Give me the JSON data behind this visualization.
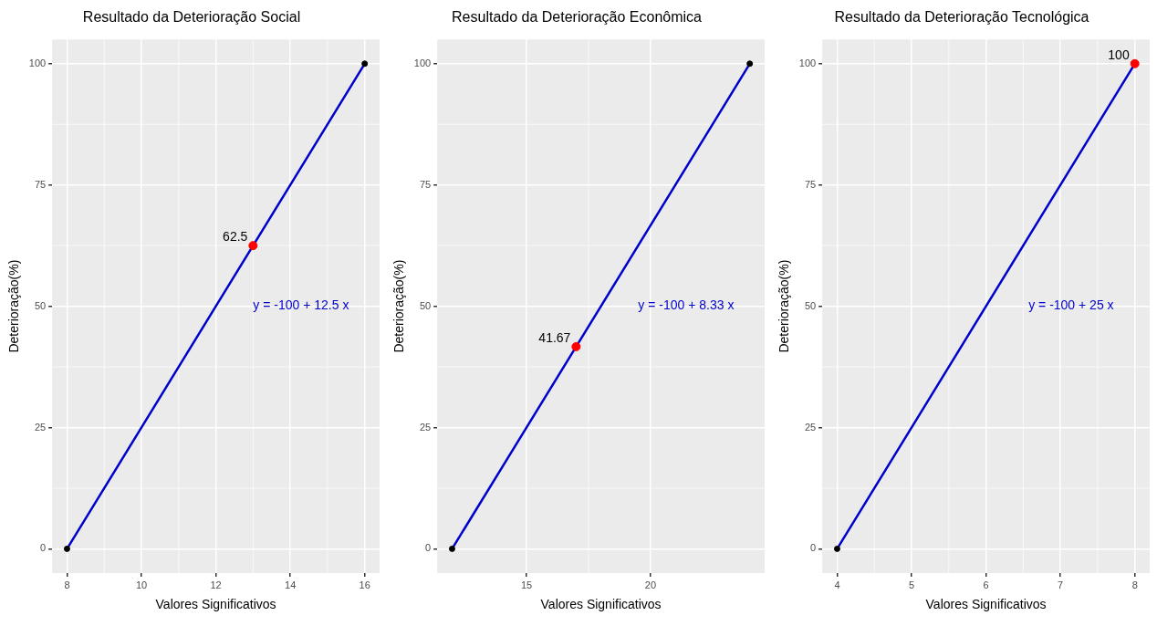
{
  "chart_data": [
    {
      "type": "line",
      "title": "Resultado da Deterioração Social",
      "xlabel": "Valores Significativos",
      "ylabel": "Deterioração(%)",
      "xlim": [
        7.6,
        16.4
      ],
      "xticks": [
        8,
        10,
        12,
        14,
        16
      ],
      "ylim": [
        -5,
        105
      ],
      "yticks": [
        0,
        25,
        50,
        75,
        100
      ],
      "grid": true,
      "series": [
        {
          "x": [
            8,
            16
          ],
          "values": [
            0,
            100
          ],
          "color": "#0000cd",
          "marker": "none"
        },
        {
          "type": "scatter",
          "x": [
            8,
            16
          ],
          "values": [
            0,
            100
          ],
          "color": "#000000",
          "marker": "circle"
        },
        {
          "type": "scatter",
          "x": [
            13
          ],
          "values": [
            62.5
          ],
          "color": "#ff0000",
          "marker": "circle",
          "value_labels": [
            "62.5"
          ]
        }
      ],
      "annotations": [
        "y = -100 + 12.5 x"
      ]
    },
    {
      "type": "line",
      "title": "Resultado da Deterioração Econômica",
      "xlabel": "Valores Significativos",
      "ylabel": "Deterioração(%)",
      "xlim": [
        11.4,
        24.6
      ],
      "xticks": [
        15,
        20
      ],
      "ylim": [
        -5,
        105
      ],
      "yticks": [
        0,
        25,
        50,
        75,
        100
      ],
      "grid": true,
      "series": [
        {
          "x": [
            12,
            24
          ],
          "values": [
            0,
            100
          ],
          "color": "#0000cd",
          "marker": "none"
        },
        {
          "type": "scatter",
          "x": [
            12,
            24
          ],
          "values": [
            0,
            100
          ],
          "color": "#000000",
          "marker": "circle"
        },
        {
          "type": "scatter",
          "x": [
            17
          ],
          "values": [
            41.67
          ],
          "color": "#ff0000",
          "marker": "circle",
          "value_labels": [
            "41.67"
          ]
        }
      ],
      "annotations": [
        "y = -100 + 8.33 x"
      ]
    },
    {
      "type": "line",
      "title": "Resultado da Deterioração Tecnológica",
      "xlabel": "Valores Significativos",
      "ylabel": "Deterioração(%)",
      "xlim": [
        3.8,
        8.2
      ],
      "xticks": [
        4,
        5,
        6,
        7,
        8
      ],
      "ylim": [
        -5,
        105
      ],
      "yticks": [
        0,
        25,
        50,
        75,
        100
      ],
      "grid": true,
      "series": [
        {
          "x": [
            4,
            8
          ],
          "values": [
            0,
            100
          ],
          "color": "#0000cd",
          "marker": "none"
        },
        {
          "type": "scatter",
          "x": [
            4
          ],
          "values": [
            0
          ],
          "color": "#000000",
          "marker": "circle"
        },
        {
          "type": "scatter",
          "x": [
            8
          ],
          "values": [
            100
          ],
          "color": "#ff0000",
          "marker": "circle",
          "value_labels": [
            "100"
          ]
        }
      ],
      "annotations": [
        "y = -100 + 25 x"
      ]
    }
  ]
}
